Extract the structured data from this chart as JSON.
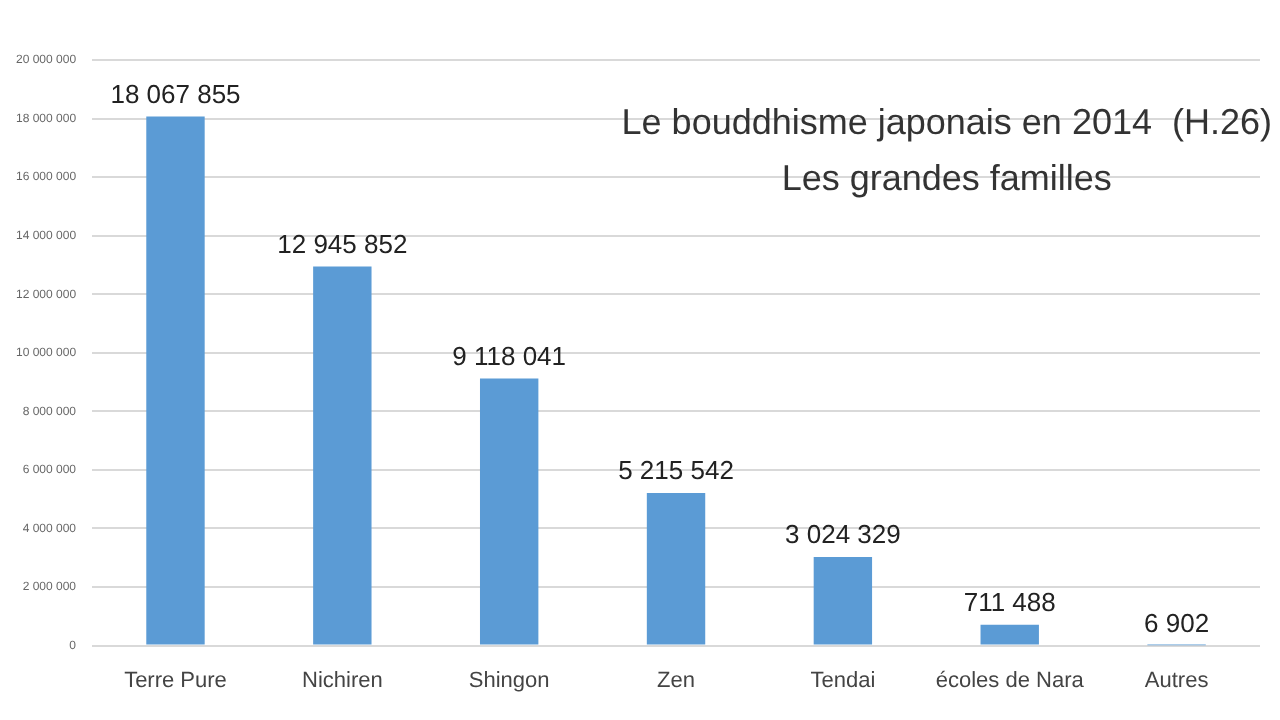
{
  "chart_data": {
    "type": "bar",
    "title": "Le bouddhisme japonais en 2014  (H.26)",
    "subtitle": "Les grandes familles",
    "categories": [
      "Terre Pure",
      "Nichiren",
      "Shingon",
      "Zen",
      "Tendai",
      "écoles de Nara",
      "Autres"
    ],
    "values": [
      18067855,
      12945852,
      9118041,
      5215542,
      3024329,
      711488,
      6902
    ],
    "value_labels": [
      "18 067 855",
      "12 945 852",
      "9 118 041",
      "5 215 542",
      "3 024 329",
      "711 488",
      "6 902"
    ],
    "color": "#5b9bd5",
    "ylim": [
      0,
      20000000
    ],
    "yticks": [
      {
        "value": 0,
        "label": "0"
      },
      {
        "value": 2000000,
        "label": "2 000 000"
      },
      {
        "value": 4000000,
        "label": "4 000 000"
      },
      {
        "value": 6000000,
        "label": "6 000 000"
      },
      {
        "value": 8000000,
        "label": "8 000 000"
      },
      {
        "value": 10000000,
        "label": "10 000 000"
      },
      {
        "value": 12000000,
        "label": "12 000 000"
      },
      {
        "value": 14000000,
        "label": "14 000 000"
      },
      {
        "value": 16000000,
        "label": "16 000 000"
      },
      {
        "value": 18000000,
        "label": "18 000 000"
      },
      {
        "value": 20000000,
        "label": "20 000 000"
      }
    ],
    "grid": "y",
    "legend": false
  }
}
